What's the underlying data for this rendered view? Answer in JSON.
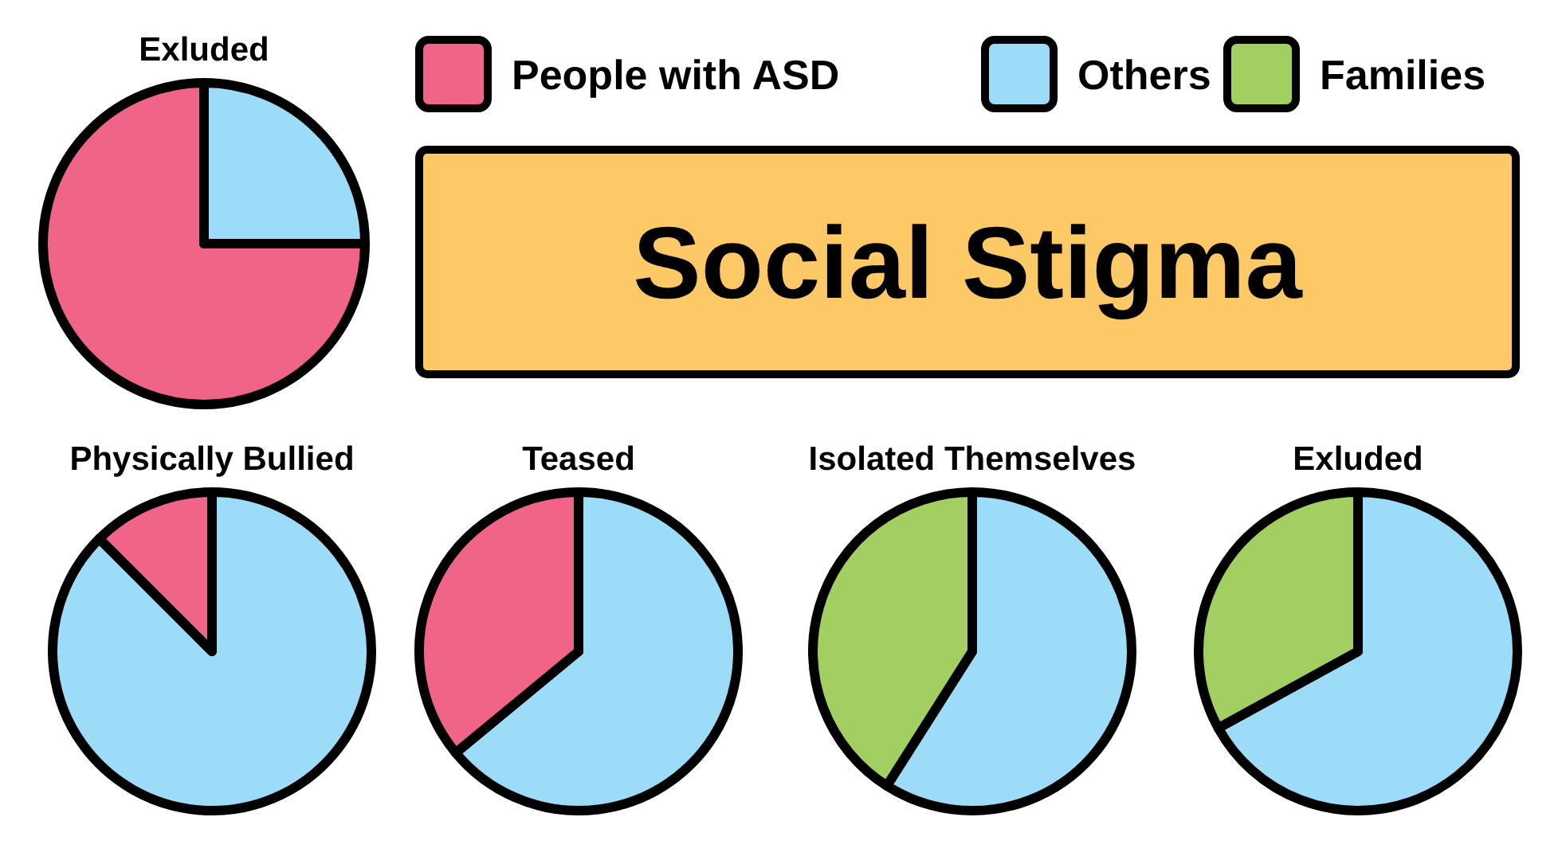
{
  "chart_data": [
    {
      "type": "pie",
      "title": "Exluded",
      "categories": [
        "People with ASD",
        "Others",
        "Families"
      ],
      "values": [
        75,
        25,
        0
      ],
      "colors": [
        "#f06488",
        "#9ddcf8",
        "#a3cf62"
      ],
      "legend": "right"
    },
    {
      "type": "other",
      "title": "Social Stigma"
    },
    {
      "type": "pie",
      "title": "Physically Bullied",
      "categories": [
        null,
        null
      ],
      "values": [
        87.5,
        12.5
      ],
      "colors": [
        "#9ddcf8",
        "#f06488"
      ]
    },
    {
      "type": "pie",
      "title": "Teased",
      "categories": [
        null,
        null
      ],
      "values": [
        64,
        36
      ],
      "colors": [
        "#9ddcf8",
        "#f06488"
      ]
    },
    {
      "type": "pie",
      "title": "Isolated Themselves",
      "categories": [
        null,
        null
      ],
      "values": [
        59,
        41
      ],
      "colors": [
        "#9ddcf8",
        "#a3cf62"
      ]
    },
    {
      "type": "pie",
      "title": "Exluded",
      "categories": [
        null,
        null
      ],
      "values": [
        67,
        33
      ],
      "colors": [
        "#9ddcf8",
        "#a3cf62"
      ]
    }
  ]
}
